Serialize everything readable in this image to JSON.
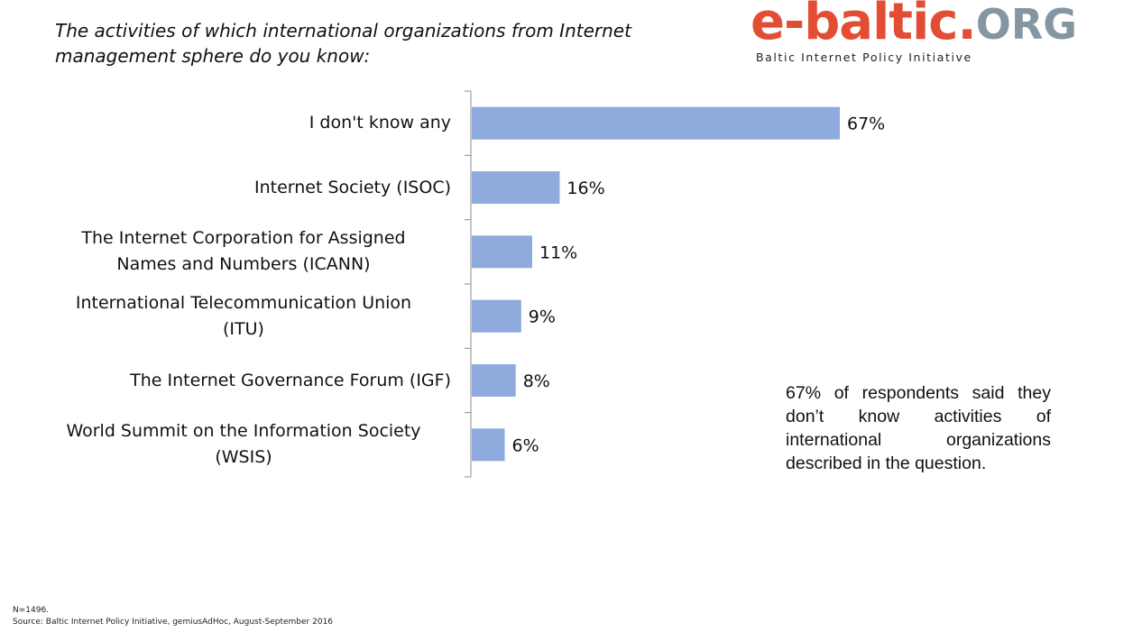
{
  "title": {
    "line1": "The activities of which international organizations from Internet",
    "line2": "management sphere do you know:"
  },
  "logo": {
    "brand": "e-baltic.",
    "suffix": "ORG",
    "tagline": "Baltic Internet Policy Initiative",
    "brand_color": "#e34d34",
    "suffix_color": "#8496a2"
  },
  "chart_data": {
    "type": "bar",
    "orientation": "horizontal",
    "categories": [
      [
        "I don't know any"
      ],
      [
        "Internet Society (ISOC)"
      ],
      [
        "The Internet Corporation for Assigned",
        "Names and Numbers  (ICANN)"
      ],
      [
        "International Telecommunication Union",
        "(ITU)"
      ],
      [
        "The Internet Governance Forum  (IGF)"
      ],
      [
        "World Summit on the Information Society",
        "(WSIS)"
      ]
    ],
    "values": [
      67,
      16,
      11,
      9,
      8,
      6
    ],
    "data_labels": [
      "67%",
      "16%",
      "11%",
      "9%",
      "8%",
      "6%"
    ],
    "unit": "%",
    "xlim": [
      0,
      100
    ],
    "bar_color": "#8faadc",
    "grid": false,
    "legend": "none"
  },
  "note": "67% of respondents said they don’t know activities of international organizations described in the question.",
  "footer": {
    "sample": "N=1496.",
    "source": "Source: Baltic Internet Policy Initiative,  gemiusAdHoc, August-September 2016"
  }
}
